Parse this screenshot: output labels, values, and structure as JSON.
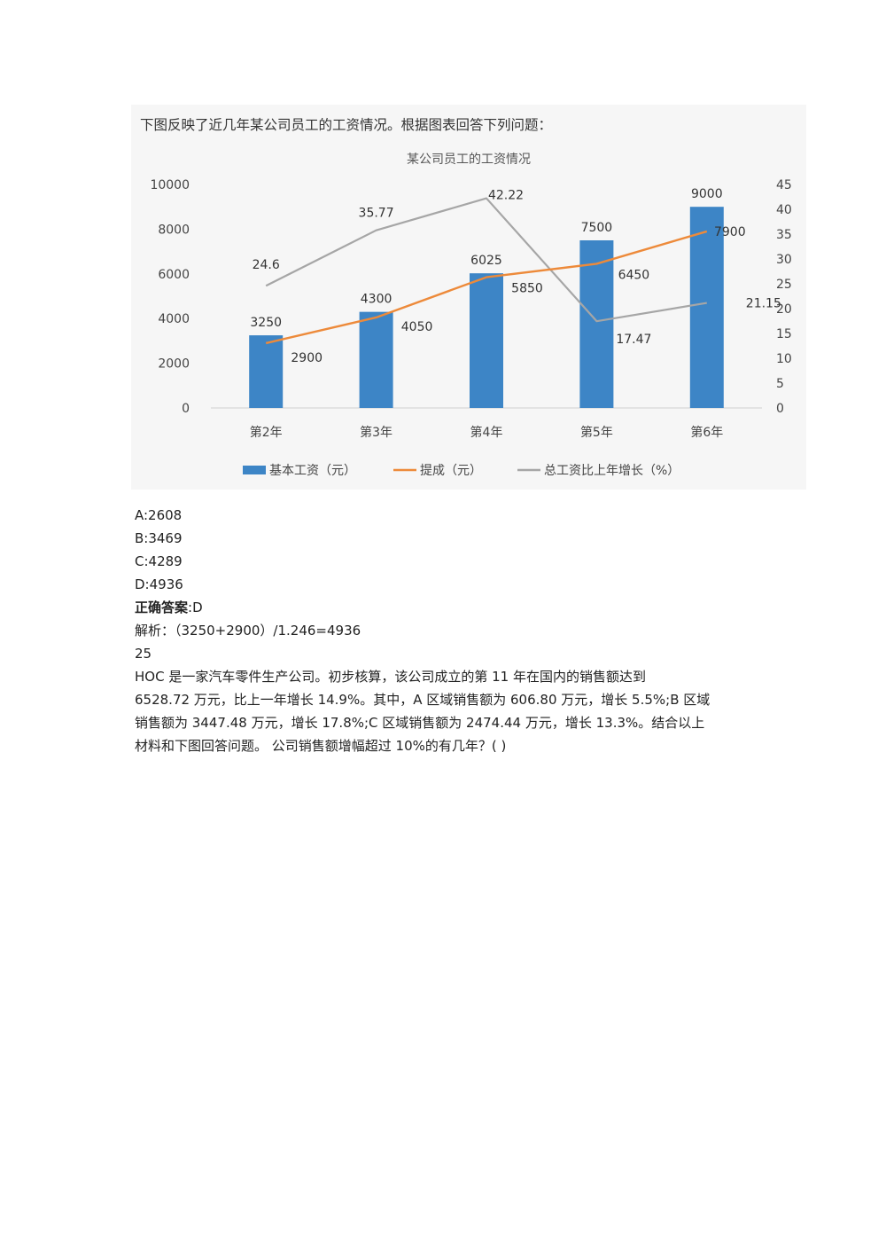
{
  "intro": "下图反映了近几年某公司员工的工资情况。根据图表回答下列问题：",
  "chart_data": {
    "type": "bar+line",
    "title": "某公司员工的工资情况",
    "categories": [
      "第2年",
      "第3年",
      "第4年",
      "第5年",
      "第6年"
    ],
    "series": [
      {
        "name": "基本工资（元）",
        "kind": "bar",
        "axis": "left",
        "color": "#3d85c6",
        "values": [
          3250,
          4300,
          6025,
          7500,
          9000
        ]
      },
      {
        "name": "提成（元）",
        "kind": "line",
        "axis": "left",
        "color": "#ed8a3a",
        "values": [
          2900,
          4050,
          5850,
          6450,
          7900
        ]
      },
      {
        "name": "总工资比上年增长（%）",
        "kind": "line",
        "axis": "right",
        "color": "#a6a6a6",
        "values": [
          24.6,
          35.77,
          42.22,
          17.47,
          21.15
        ]
      }
    ],
    "left_axis": {
      "min": 0,
      "max": 10000,
      "ticks": [
        "0",
        "2000",
        "4000",
        "6000",
        "8000",
        "10000"
      ]
    },
    "right_axis": {
      "min": 0,
      "max": 45,
      "ticks": [
        "0",
        "5",
        "10",
        "15",
        "20",
        "25",
        "30",
        "35",
        "40",
        "45"
      ]
    },
    "legend_position": "bottom",
    "grid": false
  },
  "options": [
    {
      "label": "A:2608"
    },
    {
      "label": "B:3469"
    },
    {
      "label": "C:4289"
    },
    {
      "label": "D:4936"
    }
  ],
  "answer": {
    "label": "正确答案",
    "value": ":D"
  },
  "analysis": "解析：（3250+2900）/1.246=4936",
  "question_number": "25",
  "next_question": {
    "line1": "HOC 是一家汽车零件生产公司。初步核算，该公司成立的第 11 年在国内的销售额达到",
    "line2": "6528.72 万元，比上一年增长 14.9%。其中，A 区域销售额为 606.80 万元，增长 5.5%;B 区域",
    "line3": "销售额为 3447.48 万元，增长 17.8%;C 区域销售额为 2474.44 万元，增长 13.3%。结合以上",
    "line4": "材料和下图回答问题。 公司销售额增幅超过 10%的有几年？( )"
  }
}
